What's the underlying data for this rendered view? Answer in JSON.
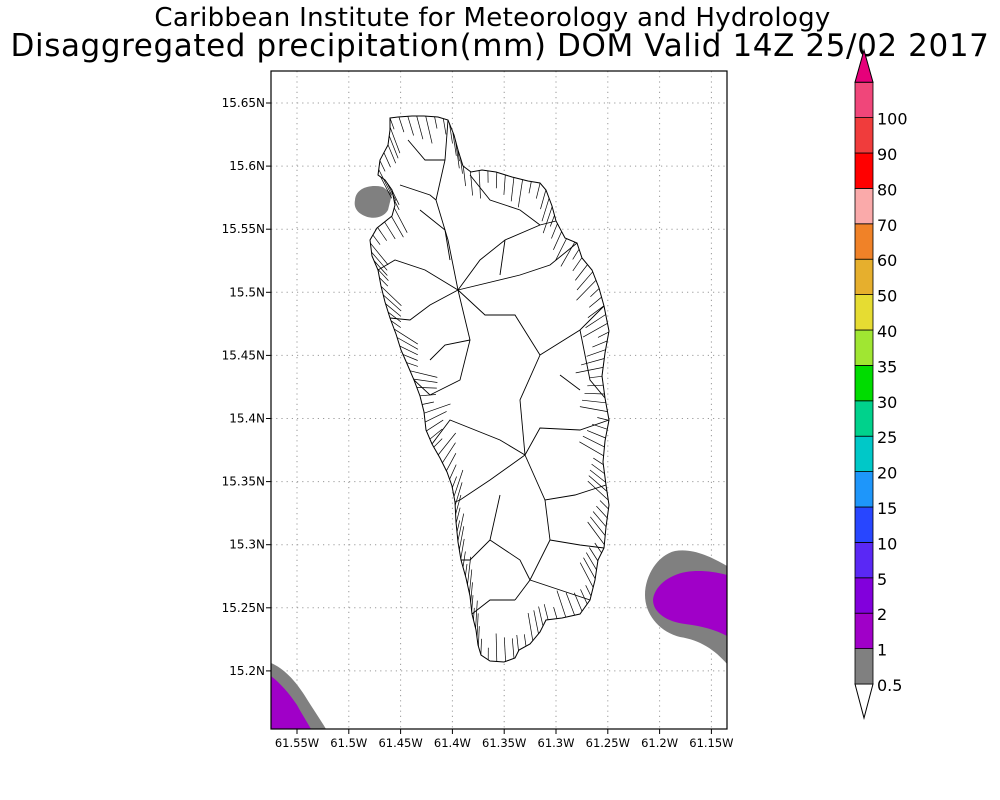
{
  "titles": {
    "line1": "Caribbean Institute for Meteorology and Hydrology",
    "line2": "Disaggregated precipitation(mm) DOM Valid 14Z 25/02 2017"
  },
  "axes": {
    "lat_labels": [
      "15.65N",
      "15.6N",
      "15.55N",
      "15.5N",
      "15.45N",
      "15.4N",
      "15.35N",
      "15.3N",
      "15.25N",
      "15.2N"
    ],
    "lon_labels": [
      "61.55W",
      "61.5W",
      "61.45W",
      "61.4W",
      "61.35W",
      "61.3W",
      "61.25W",
      "61.2W",
      "61.15W"
    ]
  },
  "legend": {
    "levels": [
      {
        "label": "0.5",
        "color": "#808080"
      },
      {
        "label": "1",
        "color": "#a000c8"
      },
      {
        "label": "2",
        "color": "#8200dc"
      },
      {
        "label": "5",
        "color": "#5a28f5"
      },
      {
        "label": "10",
        "color": "#2846ff"
      },
      {
        "label": "15",
        "color": "#1e96fa"
      },
      {
        "label": "20",
        "color": "#00c8c8"
      },
      {
        "label": "25",
        "color": "#00d28c"
      },
      {
        "label": "30",
        "color": "#00dc00"
      },
      {
        "label": "35",
        "color": "#a0e632"
      },
      {
        "label": "40",
        "color": "#e6dc32"
      },
      {
        "label": "50",
        "color": "#e6af2d"
      },
      {
        "label": "60",
        "color": "#f08228"
      },
      {
        "label": "70",
        "color": "#faaaaa"
      },
      {
        "label": "80",
        "color": "#ff0000"
      },
      {
        "label": "90",
        "color": "#f03c3c"
      },
      {
        "label": "100",
        "color": "#f0467a"
      }
    ],
    "low_arrow_color": "#ffffff",
    "high_arrow_color": "#e6007a"
  },
  "precip_colors": {
    "level_0_5": "#808080",
    "level_1": "#a000c8"
  }
}
